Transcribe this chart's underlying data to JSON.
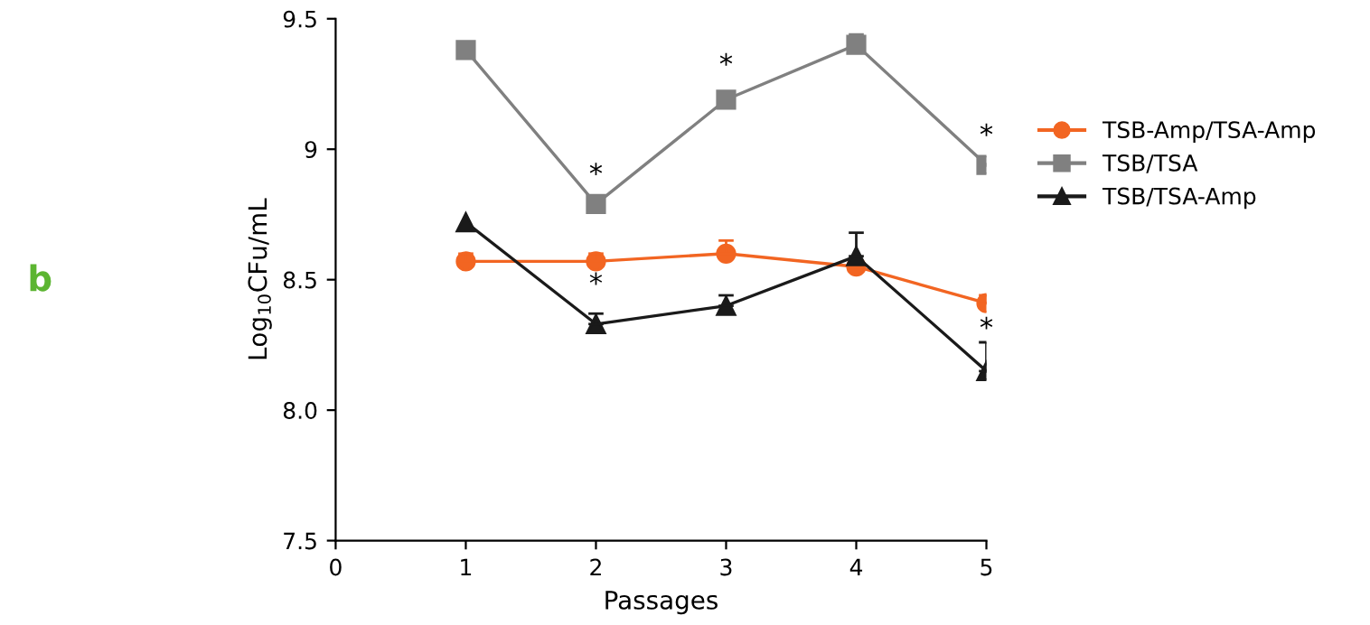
{
  "chart_data": {
    "type": "line",
    "xlabel": "Passages",
    "ylabel": "Log$_{10}$CFu/mL",
    "x": [
      1,
      2,
      3,
      4,
      5
    ],
    "series": [
      {
        "name": "TSB-Amp/TSA-Amp",
        "color": "#f26522",
        "marker": "circle",
        "values": [
          8.57,
          8.57,
          8.6,
          8.55,
          8.41
        ],
        "errors": [
          [
            8.57,
            8.6
          ],
          [
            8.57,
            8.6
          ],
          [
            8.6,
            8.65
          ],
          null,
          [
            8.41,
            8.44
          ]
        ]
      },
      {
        "name": "TSB/TSA",
        "color": "#808080",
        "marker": "square",
        "values": [
          9.38,
          8.79,
          9.19,
          9.4,
          8.94
        ],
        "errors": [
          null,
          null,
          [
            9.19,
            9.21
          ],
          [
            9.4,
            9.44
          ],
          null
        ]
      },
      {
        "name": "TSB/TSA-Amp",
        "color": "#1a1a1a",
        "marker": "triangle",
        "values": [
          8.72,
          8.33,
          8.4,
          8.59,
          8.15
        ],
        "errors": [
          null,
          [
            8.33,
            8.37
          ],
          [
            8.4,
            8.44
          ],
          [
            8.59,
            8.68
          ],
          [
            8.15,
            8.26
          ]
        ]
      }
    ],
    "xlim": [
      0,
      5
    ],
    "ylim": [
      7.5,
      9.5
    ],
    "xticks": [
      0,
      1,
      2,
      3,
      4,
      5
    ],
    "yticks": [
      7.5,
      {
        "value": 8,
        "label": "8.0"
      },
      8.5,
      9,
      9.5
    ],
    "grid": false,
    "legend": "right",
    "annotations": [
      {
        "text": "*",
        "x": 2,
        "y": 8.79
      },
      {
        "text": "*",
        "x": 3,
        "y": 9.21
      },
      {
        "text": "*",
        "x": 5,
        "y": 8.94
      },
      {
        "text": "*",
        "x": 2,
        "y": 8.37
      },
      {
        "text": "*",
        "x": 5,
        "y": 8.2
      },
      "b"
    ]
  }
}
